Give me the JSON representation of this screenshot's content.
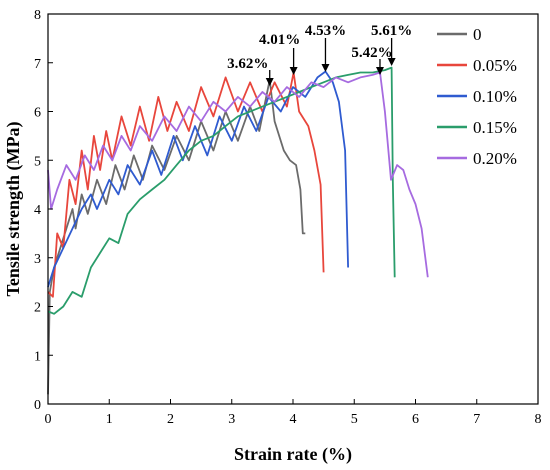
{
  "chart_data": {
    "type": "line",
    "xlabel": "Strain rate (%)",
    "ylabel": "Tensile strength (MPa)",
    "xlim": [
      0,
      8
    ],
    "ylim": [
      0,
      8
    ],
    "xticks": [
      "0",
      "1",
      "2",
      "3",
      "4",
      "5",
      "6",
      "7",
      "8"
    ],
    "yticks": [
      "0",
      "1",
      "2",
      "3",
      "4",
      "5",
      "6",
      "7",
      "8"
    ],
    "grid": false,
    "legend_position": "top-right",
    "series": [
      {
        "name": "0",
        "color": "#6b6b6b",
        "points": [
          [
            0,
            0.2
          ],
          [
            0.03,
            2.3
          ],
          [
            0.1,
            2.8
          ],
          [
            0.2,
            3.2
          ],
          [
            0.3,
            3.6
          ],
          [
            0.4,
            4.0
          ],
          [
            0.45,
            3.6
          ],
          [
            0.55,
            4.3
          ],
          [
            0.65,
            3.9
          ],
          [
            0.8,
            4.6
          ],
          [
            0.95,
            4.1
          ],
          [
            1.1,
            4.9
          ],
          [
            1.25,
            4.4
          ],
          [
            1.4,
            5.1
          ],
          [
            1.55,
            4.6
          ],
          [
            1.7,
            5.3
          ],
          [
            1.9,
            4.8
          ],
          [
            2.1,
            5.5
          ],
          [
            2.3,
            5.0
          ],
          [
            2.5,
            5.8
          ],
          [
            2.7,
            5.2
          ],
          [
            2.9,
            6.0
          ],
          [
            3.1,
            5.4
          ],
          [
            3.3,
            6.1
          ],
          [
            3.45,
            5.6
          ],
          [
            3.62,
            6.65
          ],
          [
            3.7,
            5.8
          ],
          [
            3.85,
            5.2
          ],
          [
            3.95,
            5.0
          ],
          [
            4.05,
            4.9
          ],
          [
            4.12,
            4.4
          ],
          [
            4.16,
            3.5
          ],
          [
            4.2,
            3.5
          ]
        ]
      },
      {
        "name": "0.05%",
        "color": "#e8463c",
        "points": [
          [
            0,
            2.3
          ],
          [
            0.08,
            2.2
          ],
          [
            0.15,
            3.5
          ],
          [
            0.25,
            3.2
          ],
          [
            0.35,
            4.6
          ],
          [
            0.45,
            4.1
          ],
          [
            0.55,
            5.2
          ],
          [
            0.65,
            4.4
          ],
          [
            0.75,
            5.5
          ],
          [
            0.85,
            4.8
          ],
          [
            0.95,
            5.6
          ],
          [
            1.05,
            5.0
          ],
          [
            1.2,
            5.9
          ],
          [
            1.35,
            5.3
          ],
          [
            1.5,
            6.1
          ],
          [
            1.65,
            5.4
          ],
          [
            1.8,
            6.3
          ],
          [
            1.95,
            5.6
          ],
          [
            2.1,
            6.2
          ],
          [
            2.3,
            5.6
          ],
          [
            2.5,
            6.5
          ],
          [
            2.7,
            5.9
          ],
          [
            2.9,
            6.7
          ],
          [
            3.1,
            6.0
          ],
          [
            3.3,
            6.6
          ],
          [
            3.5,
            6.0
          ],
          [
            3.7,
            6.6
          ],
          [
            3.9,
            6.1
          ],
          [
            4.01,
            6.8
          ],
          [
            4.1,
            6.0
          ],
          [
            4.25,
            5.7
          ],
          [
            4.35,
            5.2
          ],
          [
            4.45,
            4.5
          ],
          [
            4.5,
            2.7
          ]
        ]
      },
      {
        "name": "0.10%",
        "color": "#2f5bd0",
        "points": [
          [
            0,
            2.4
          ],
          [
            0.1,
            2.8
          ],
          [
            0.25,
            3.2
          ],
          [
            0.4,
            3.6
          ],
          [
            0.55,
            4.0
          ],
          [
            0.7,
            4.3
          ],
          [
            0.8,
            4.0
          ],
          [
            1.0,
            4.6
          ],
          [
            1.15,
            4.3
          ],
          [
            1.3,
            4.9
          ],
          [
            1.5,
            4.5
          ],
          [
            1.7,
            5.2
          ],
          [
            1.85,
            4.7
          ],
          [
            2.05,
            5.5
          ],
          [
            2.2,
            5.0
          ],
          [
            2.4,
            5.7
          ],
          [
            2.6,
            5.1
          ],
          [
            2.8,
            5.9
          ],
          [
            3.0,
            5.4
          ],
          [
            3.2,
            6.1
          ],
          [
            3.4,
            5.6
          ],
          [
            3.6,
            6.3
          ],
          [
            3.8,
            6.0
          ],
          [
            4.0,
            6.5
          ],
          [
            4.2,
            6.3
          ],
          [
            4.4,
            6.7
          ],
          [
            4.53,
            6.82
          ],
          [
            4.65,
            6.6
          ],
          [
            4.75,
            6.2
          ],
          [
            4.85,
            5.2
          ],
          [
            4.9,
            2.8
          ]
        ]
      },
      {
        "name": "0.15%",
        "color": "#2a9d6b",
        "points": [
          [
            0,
            1.9
          ],
          [
            0.1,
            1.85
          ],
          [
            0.25,
            2.0
          ],
          [
            0.4,
            2.3
          ],
          [
            0.55,
            2.2
          ],
          [
            0.7,
            2.8
          ],
          [
            0.85,
            3.1
          ],
          [
            1.0,
            3.4
          ],
          [
            1.15,
            3.3
          ],
          [
            1.3,
            3.9
          ],
          [
            1.5,
            4.2
          ],
          [
            1.7,
            4.4
          ],
          [
            1.9,
            4.6
          ],
          [
            2.1,
            4.9
          ],
          [
            2.3,
            5.2
          ],
          [
            2.5,
            5.4
          ],
          [
            2.7,
            5.5
          ],
          [
            2.9,
            5.7
          ],
          [
            3.1,
            5.9
          ],
          [
            3.3,
            6.0
          ],
          [
            3.5,
            6.1
          ],
          [
            3.7,
            6.2
          ],
          [
            3.9,
            6.3
          ],
          [
            4.1,
            6.4
          ],
          [
            4.3,
            6.5
          ],
          [
            4.5,
            6.6
          ],
          [
            4.7,
            6.7
          ],
          [
            4.9,
            6.75
          ],
          [
            5.1,
            6.8
          ],
          [
            5.3,
            6.8
          ],
          [
            5.5,
            6.85
          ],
          [
            5.61,
            6.9
          ],
          [
            5.63,
            4.6
          ],
          [
            5.66,
            2.6
          ]
        ]
      },
      {
        "name": "0.20%",
        "color": "#a66be0",
        "points": [
          [
            0,
            4.8
          ],
          [
            0.05,
            4.0
          ],
          [
            0.15,
            4.4
          ],
          [
            0.3,
            4.9
          ],
          [
            0.45,
            4.6
          ],
          [
            0.6,
            5.1
          ],
          [
            0.75,
            4.8
          ],
          [
            0.9,
            5.3
          ],
          [
            1.05,
            5.0
          ],
          [
            1.2,
            5.5
          ],
          [
            1.35,
            5.2
          ],
          [
            1.5,
            5.7
          ],
          [
            1.7,
            5.4
          ],
          [
            1.9,
            5.9
          ],
          [
            2.1,
            5.6
          ],
          [
            2.3,
            6.1
          ],
          [
            2.5,
            5.8
          ],
          [
            2.7,
            6.2
          ],
          [
            2.9,
            6.0
          ],
          [
            3.1,
            6.3
          ],
          [
            3.3,
            6.1
          ],
          [
            3.5,
            6.4
          ],
          [
            3.7,
            6.2
          ],
          [
            3.9,
            6.5
          ],
          [
            4.1,
            6.3
          ],
          [
            4.3,
            6.6
          ],
          [
            4.5,
            6.5
          ],
          [
            4.7,
            6.7
          ],
          [
            4.9,
            6.6
          ],
          [
            5.1,
            6.7
          ],
          [
            5.3,
            6.75
          ],
          [
            5.42,
            6.8
          ],
          [
            5.5,
            6.0
          ],
          [
            5.6,
            4.6
          ],
          [
            5.7,
            4.9
          ],
          [
            5.8,
            4.8
          ],
          [
            5.9,
            4.4
          ],
          [
            6.0,
            4.1
          ],
          [
            6.1,
            3.6
          ],
          [
            6.2,
            2.6
          ]
        ]
      }
    ],
    "annotations": [
      {
        "label": "3.62%",
        "x": 3.62,
        "y": 6.65
      },
      {
        "label": "4.01%",
        "x": 4.01,
        "y": 6.8
      },
      {
        "label": "4.53%",
        "x": 4.53,
        "y": 6.82
      },
      {
        "label": "5.42%",
        "x": 5.42,
        "y": 6.8
      },
      {
        "label": "5.61%",
        "x": 5.61,
        "y": 6.9
      }
    ]
  }
}
